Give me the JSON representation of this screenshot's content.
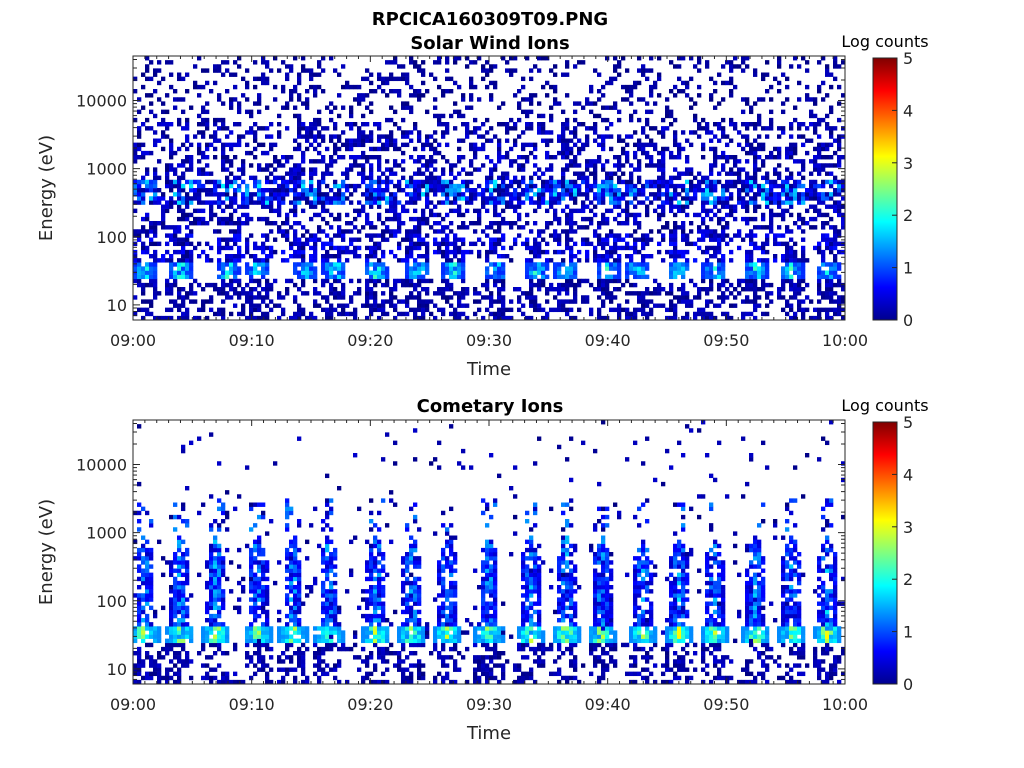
{
  "figure": {
    "title": "RPCICA160309T09.PNG"
  },
  "chart_data": [
    {
      "type": "heatmap",
      "title": "Solar Wind Ions",
      "xlabel": "Time",
      "ylabel": "Energy (eV)",
      "yscale": "log",
      "ylim": [
        6,
        45000
      ],
      "xlim": [
        "09:00",
        "10:00"
      ],
      "x_ticks": [
        "09:00",
        "09:10",
        "09:20",
        "09:30",
        "09:40",
        "09:50",
        "10:00"
      ],
      "y_ticks": [
        10,
        100,
        1000,
        10000
      ],
      "y_tick_labels": [
        "10",
        "100",
        "1000",
        "10000"
      ],
      "colorbar": {
        "label": "Log counts",
        "range": [
          0,
          5
        ],
        "ticks": [
          "0",
          "1",
          "2",
          "3",
          "4",
          "5"
        ],
        "colormap": "jet"
      },
      "pattern": {
        "bursts_minutes": [
          1,
          4,
          8,
          10.5,
          14.5,
          17,
          20.5,
          24,
          27,
          30.5,
          34,
          36.5,
          40,
          42.5,
          46,
          49,
          52.5,
          55.5,
          58.5
        ],
        "peak_band_eV": [
          25,
          45
        ],
        "peak_log_counts": 2.3,
        "upper_band_eV": [
          300,
          700
        ],
        "upper_band_log_counts": 1.5,
        "background_max_eV": 45000,
        "background_density": 0.35
      }
    },
    {
      "type": "heatmap",
      "title": "Cometary Ions",
      "xlabel": "Time",
      "ylabel": "Energy (eV)",
      "yscale": "log",
      "ylim": [
        6,
        45000
      ],
      "xlim": [
        "09:00",
        "10:00"
      ],
      "x_ticks": [
        "09:00",
        "09:10",
        "09:20",
        "09:30",
        "09:40",
        "09:50",
        "10:00"
      ],
      "y_ticks": [
        10,
        100,
        1000,
        10000
      ],
      "y_tick_labels": [
        "10",
        "100",
        "1000",
        "10000"
      ],
      "colorbar": {
        "label": "Log counts",
        "range": [
          0,
          5
        ],
        "ticks": [
          "0",
          "1",
          "2",
          "3",
          "4",
          "5"
        ],
        "colormap": "jet"
      },
      "pattern": {
        "bursts_minutes": [
          1,
          4,
          7,
          10.5,
          13.5,
          16.5,
          20.5,
          23.5,
          26.5,
          30,
          33.5,
          36.5,
          39.5,
          43,
          46,
          49,
          52.5,
          55.5,
          58.5
        ],
        "peak_band_eV": [
          25,
          45
        ],
        "peak_log_counts": 2.8,
        "plume_top_eV": 800,
        "background_max_eV": 3000,
        "background_density": 0.04
      }
    }
  ]
}
